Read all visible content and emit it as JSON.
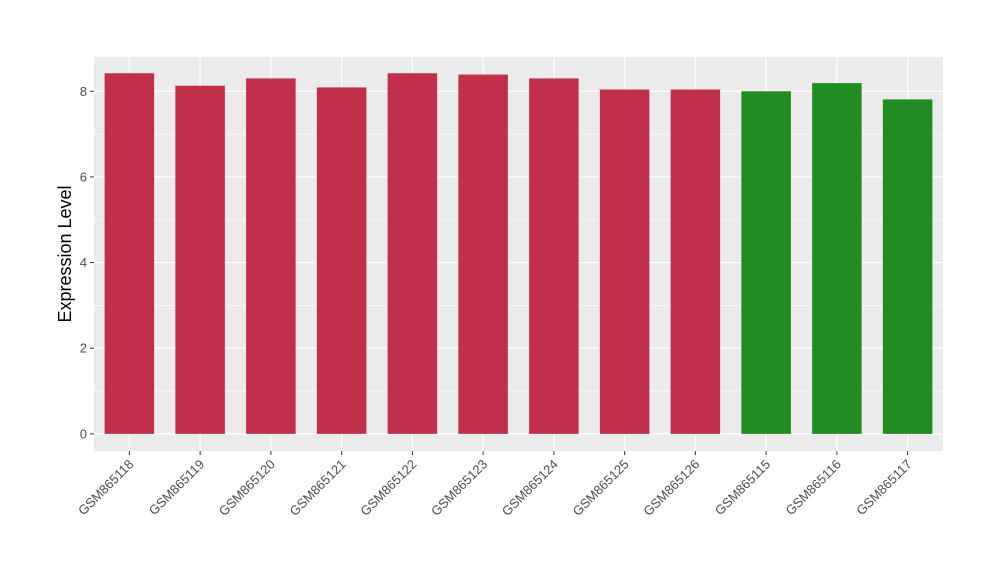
{
  "chart_data": {
    "type": "bar",
    "title": "",
    "xlabel": "",
    "ylabel": "Expression Level",
    "ylim": [
      -0.4,
      8.8
    ],
    "yticks": [
      0,
      2,
      4,
      6,
      8
    ],
    "grid": true,
    "categories": [
      "GSM865118",
      "GSM865119",
      "GSM865120",
      "GSM865121",
      "GSM865122",
      "GSM865123",
      "GSM865124",
      "GSM865125",
      "GSM865126",
      "GSM865115",
      "GSM865116",
      "GSM865117"
    ],
    "values": [
      8.42,
      8.13,
      8.3,
      8.09,
      8.42,
      8.39,
      8.3,
      8.04,
      8.04,
      8.0,
      8.19,
      7.81
    ],
    "bar_colors": [
      "#c0304a",
      "#c0304a",
      "#c0304a",
      "#c0304a",
      "#c0304a",
      "#c0304a",
      "#c0304a",
      "#c0304a",
      "#c0304a",
      "#228b22",
      "#228b22",
      "#228b22"
    ],
    "panel_background": "#ebebeb",
    "gridline_color": "#ffffff"
  }
}
